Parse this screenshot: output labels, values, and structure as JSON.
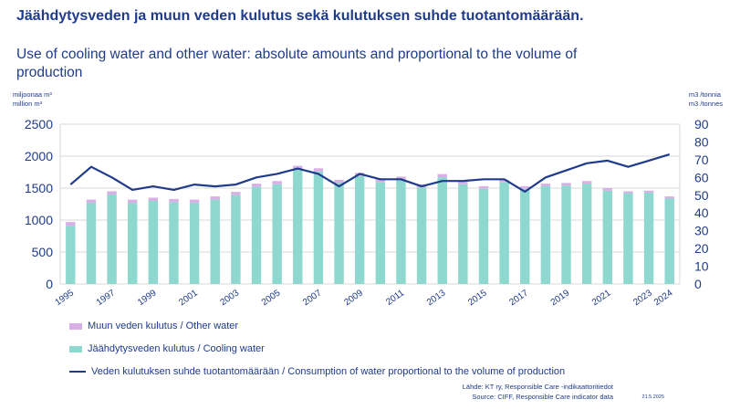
{
  "title_fi": "Jäähdytysveden ja muun veden kulutus sekä kulutuksen suhde tuotantomäärään.",
  "title_en": "Use of cooling water and other water: absolute amounts and proportional to the volume of production",
  "left_unit": [
    "miljoonaa m³",
    "million m³"
  ],
  "right_unit": [
    "m3 /tonnia",
    "m3 /tonnes"
  ],
  "legend": {
    "other_water": "Muun veden kulutus / Other water",
    "cooling_water": "Jäähdytysveden kulutus / Cooling water",
    "ratio": "Veden kulutuksen suhde tuotantomäärään / Consumption of water proportional to the volume of production"
  },
  "source": [
    "Lähde: KT ry, Responsible Care -indikaattoritiedot",
    "Source: CIFF, Responsible Care indicator data"
  ],
  "date": "21.5.2025",
  "colors": {
    "cooling": "#8ed8cf",
    "other": "#d9b0e6",
    "line": "#1f3b8a",
    "grid": "#d9d9d9"
  },
  "chart_data": {
    "type": "bar",
    "x": [
      "1995",
      "1996",
      "1997",
      "1998",
      "1999",
      "2000",
      "2001",
      "2002",
      "2003",
      "2004",
      "2005",
      "2006",
      "2007",
      "2008",
      "2009",
      "2010",
      "2011",
      "2012",
      "2013",
      "2014",
      "2015",
      "2016",
      "2017",
      "2018",
      "2019",
      "2020",
      "2021",
      "2022",
      "2023",
      "2024"
    ],
    "x_tick_labels": [
      "1995",
      "1997",
      "1999",
      "2001",
      "2003",
      "2005",
      "2007",
      "2009",
      "2011",
      "2013",
      "2015",
      "2017",
      "2019",
      "2021",
      "2023",
      "2024"
    ],
    "series": [
      {
        "name": "Jäähdytysveden kulutus / Cooling water",
        "type": "bar",
        "stack": "water",
        "axis": "left",
        "values": [
          910,
          1270,
          1400,
          1270,
          1300,
          1280,
          1270,
          1320,
          1390,
          1520,
          1560,
          1800,
          1760,
          1580,
          1690,
          1590,
          1630,
          1510,
          1670,
          1560,
          1490,
          1590,
          1490,
          1530,
          1540,
          1570,
          1460,
          1420,
          1430,
          1340
        ]
      },
      {
        "name": "Muun veden kulutus / Other water",
        "type": "bar",
        "stack": "water",
        "axis": "left",
        "values": [
          60,
          50,
          50,
          50,
          50,
          50,
          50,
          50,
          50,
          50,
          50,
          50,
          50,
          50,
          50,
          50,
          50,
          50,
          50,
          50,
          40,
          40,
          40,
          40,
          40,
          40,
          40,
          30,
          30,
          30
        ]
      },
      {
        "name": "Veden kulutuksen suhde tuotantomäärään / Consumption of water proportional to the volume of production",
        "type": "line",
        "axis": "right",
        "values": [
          56,
          66,
          60,
          53,
          55,
          53,
          56,
          55,
          56,
          60,
          62,
          65,
          62,
          55,
          62,
          59,
          59,
          55,
          58,
          58,
          59,
          59,
          52,
          60,
          64,
          68,
          69.5,
          66,
          69.5,
          73
        ]
      }
    ],
    "left_axis": {
      "ylim": [
        0,
        2500
      ],
      "ticks": [
        0,
        500,
        1000,
        1500,
        2000,
        2500
      ]
    },
    "right_axis": {
      "ylim": [
        0,
        90
      ],
      "ticks": [
        0,
        10,
        20,
        30,
        40,
        50,
        60,
        70,
        80,
        90
      ]
    },
    "grid": true,
    "legend_position": "bottom"
  }
}
